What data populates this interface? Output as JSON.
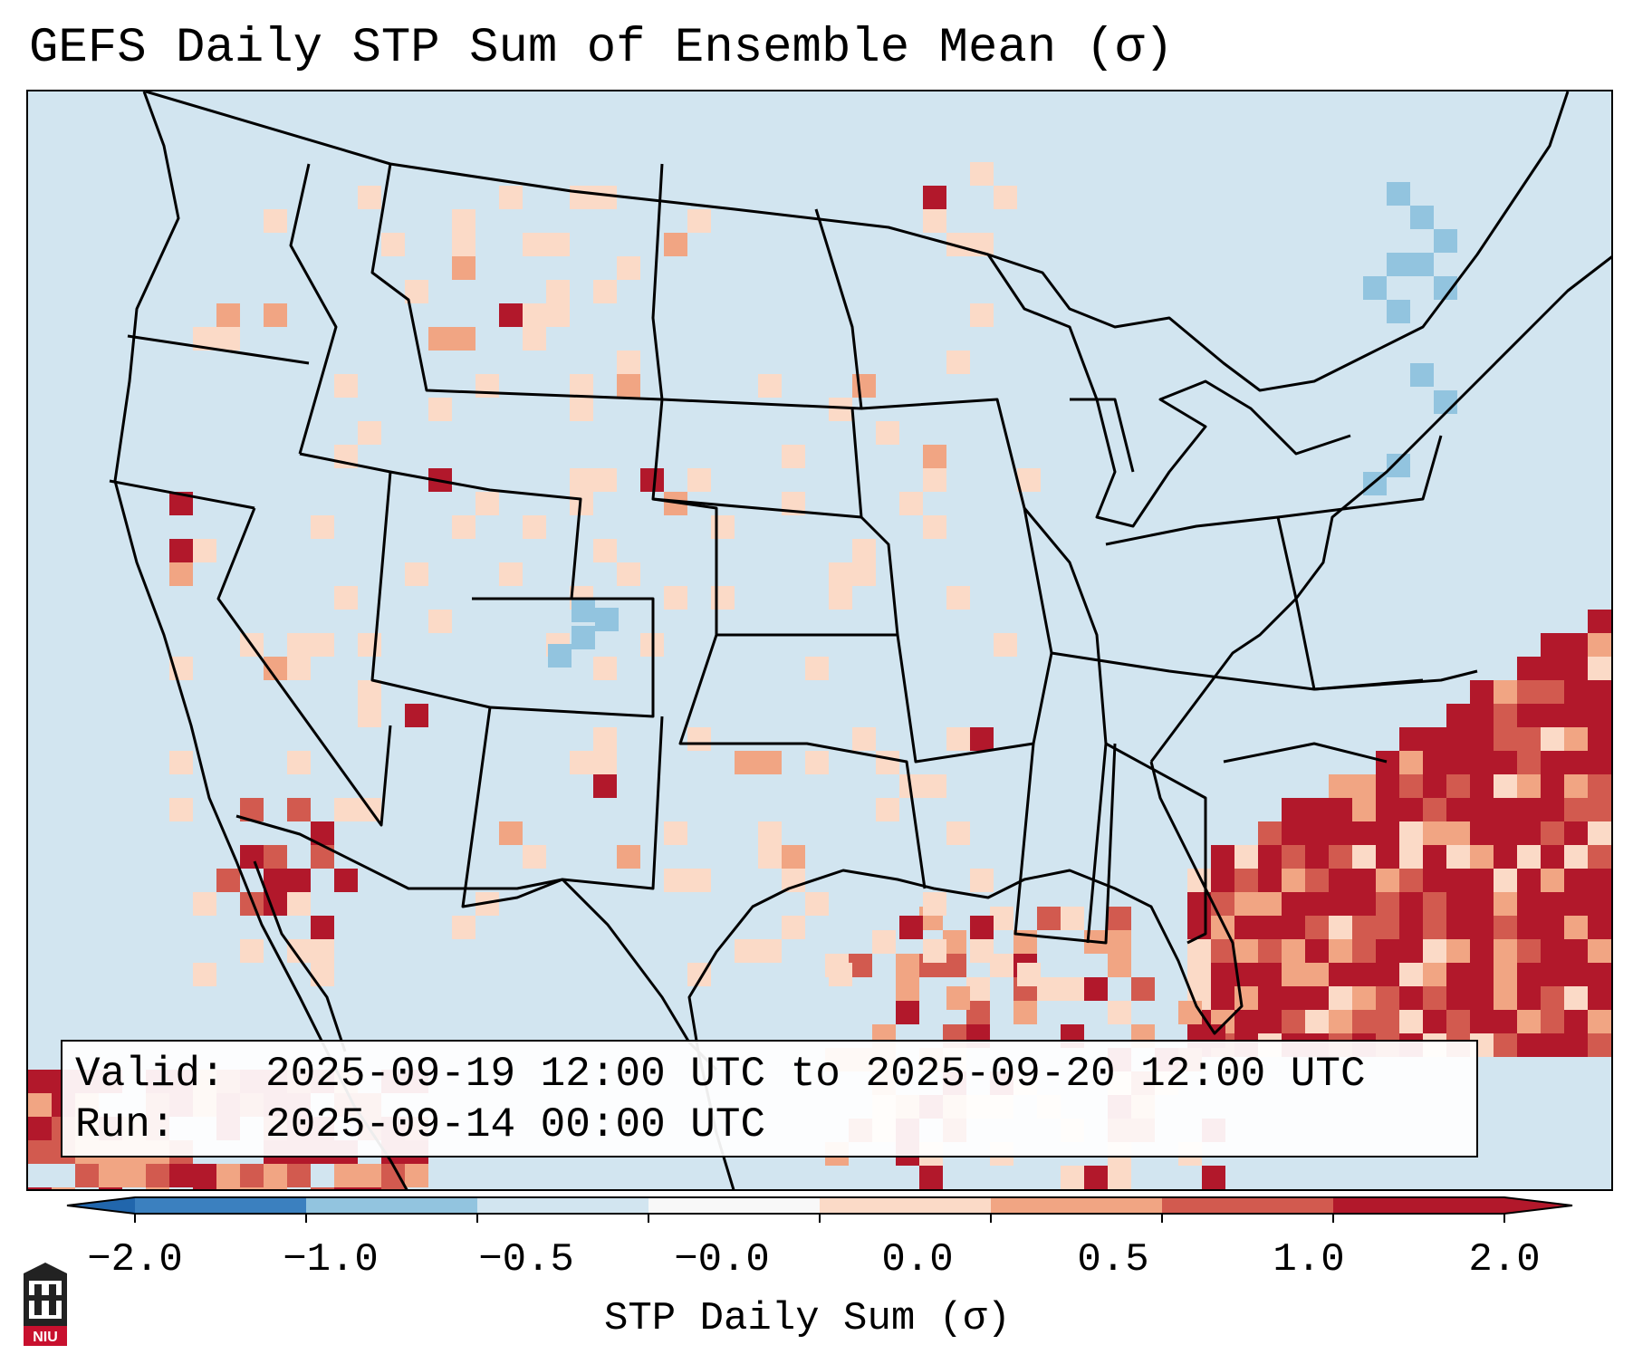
{
  "title": "GEFS Daily STP Sum of Ensemble Mean (σ)",
  "info": {
    "valid_label": "Valid:",
    "valid_value": "2025-09-19 12:00 UTC to 2025-09-20 12:00 UTC",
    "run_label": "Run:",
    "run_value": "2025-09-14 00:00 UTC"
  },
  "colorbar": {
    "label": "STP Daily Sum (σ)",
    "ticks": [
      "−2.0",
      "−1.0",
      "−0.5",
      "−0.0",
      "0.0",
      "0.5",
      "1.0",
      "2.0"
    ],
    "colors": [
      "#3b80bf",
      "#92c4df",
      "#d2e5f0",
      "#f8f8f8",
      "#fbdac7",
      "#f1a583",
      "#d25a4f",
      "#b2182b"
    ],
    "extend_low_color": "#2166ac",
    "extend_high_color": "#b2182b"
  },
  "map": {
    "background_color": "#d2e5f0",
    "line_color": "#000000"
  },
  "logo": {
    "text": "NIU",
    "color": "#c8102e"
  }
}
